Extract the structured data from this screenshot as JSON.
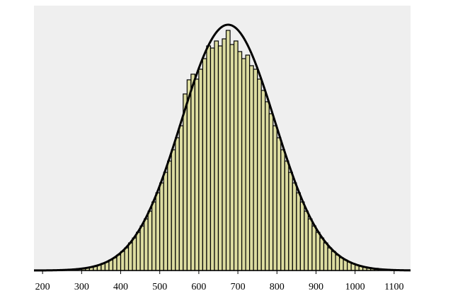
{
  "chart_data": {
    "type": "histogram",
    "bins": [
      300,
      310,
      320,
      330,
      340,
      350,
      360,
      370,
      380,
      390,
      400,
      410,
      420,
      430,
      440,
      450,
      460,
      470,
      480,
      490,
      500,
      510,
      520,
      530,
      540,
      550,
      560,
      570,
      580,
      590,
      600,
      610,
      620,
      630,
      640,
      650,
      660,
      670,
      680,
      690,
      700,
      710,
      720,
      730,
      740,
      750,
      760,
      770,
      780,
      790,
      800,
      810,
      820,
      830,
      840,
      850,
      860,
      870,
      880,
      890,
      900,
      910,
      920,
      930,
      940,
      950,
      960,
      970,
      980,
      990,
      1000,
      1010,
      1020,
      1030,
      1040,
      1050,
      1060
    ],
    "values": [
      3,
      4,
      5,
      6,
      8,
      10,
      12,
      15,
      18,
      22,
      27,
      32,
      39,
      46,
      54,
      63,
      73,
      84,
      97,
      110,
      124,
      139,
      155,
      171,
      188,
      205,
      250,
      270,
      278,
      271,
      285,
      300,
      318,
      315,
      325,
      318,
      328,
      340,
      320,
      325,
      310,
      300,
      305,
      290,
      285,
      271,
      255,
      239,
      222,
      205,
      188,
      171,
      155,
      139,
      124,
      110,
      97,
      84,
      73,
      63,
      54,
      46,
      39,
      32,
      27,
      22,
      18,
      15,
      12,
      10,
      8,
      6,
      5,
      4,
      3,
      3
    ],
    "color": "#dcdca0",
    "curve": {
      "mean": 675,
      "sd": 120,
      "peak": 348
    },
    "xlim": [
      178,
      1142
    ],
    "ylim": [
      0,
      375
    ],
    "xticks": [
      200,
      300,
      400,
      500,
      600,
      700,
      800,
      900,
      1000,
      1100
    ]
  }
}
